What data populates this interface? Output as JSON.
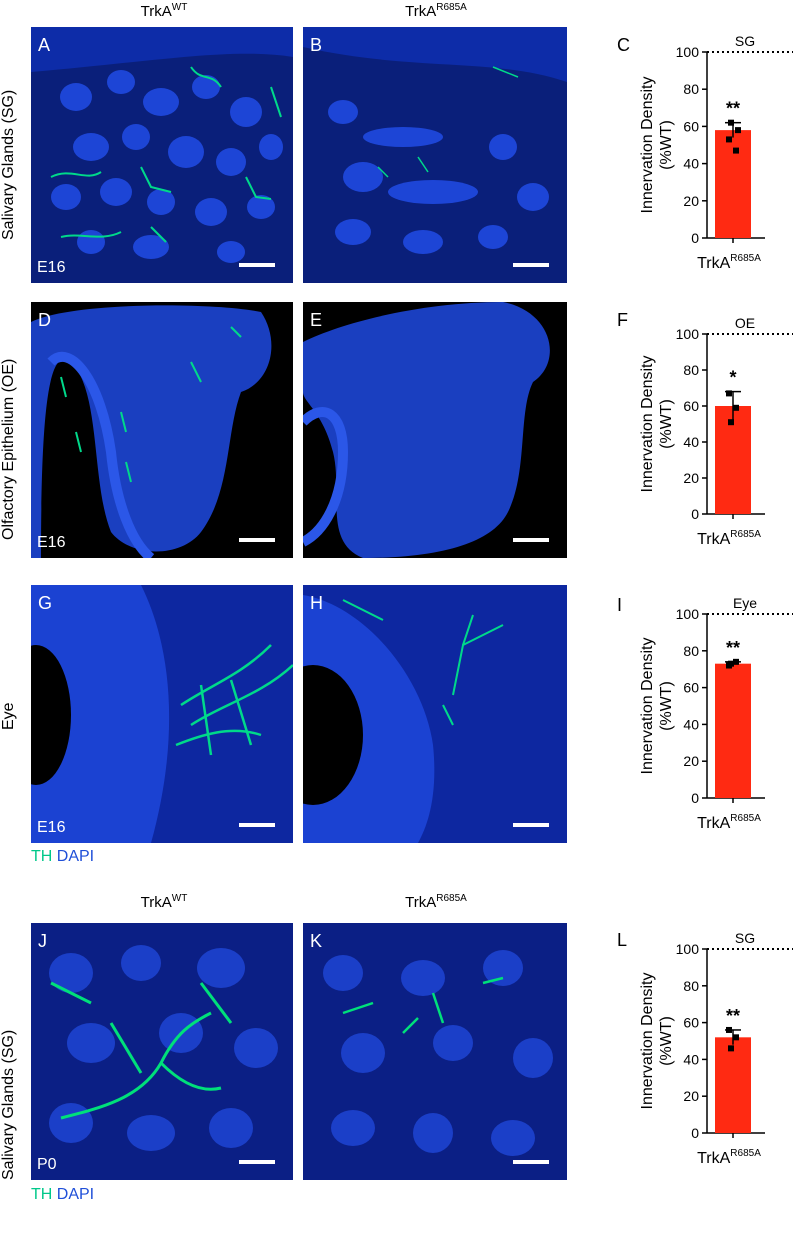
{
  "headers": [
    {
      "base": "TrkA",
      "sup": "WT"
    },
    {
      "base": "TrkA",
      "sup": "R685A"
    }
  ],
  "rows": [
    {
      "label": "Salivary Glands (SG)"
    },
    {
      "label": "Olfactory Epithelium (OE)"
    },
    {
      "label": "Eye"
    },
    {
      "label": "Salivary Glands (SG)"
    }
  ],
  "panels": {
    "A": {
      "letter": "A",
      "age": "E16"
    },
    "B": {
      "letter": "B"
    },
    "D": {
      "letter": "D",
      "age": "E16"
    },
    "E": {
      "letter": "E"
    },
    "G": {
      "letter": "G",
      "age": "E16"
    },
    "H": {
      "letter": "H"
    },
    "J": {
      "letter": "J",
      "age": "P0"
    },
    "K": {
      "letter": "K"
    }
  },
  "legend": {
    "th": "TH",
    "dapi": "DAPI"
  },
  "colors": {
    "th": "#00c88a",
    "dapi": "#1f4fd8",
    "bar": "#ff2a12"
  },
  "chart_data": [
    {
      "letter": "C",
      "type": "bar",
      "title": "SG",
      "ylabel": "Innervation Density (%WT)",
      "ylabel1": "Innervation Density",
      "ylabel2": "(%WT)",
      "category_base": "TrkA",
      "category_sup": "R685A",
      "value": 58,
      "sem": 4,
      "points": [
        53,
        47,
        62,
        58
      ],
      "significance": "**",
      "ylim": [
        0,
        100
      ],
      "yticks": [
        "0",
        "20",
        "40",
        "60",
        "80",
        "100"
      ],
      "reference_line": 100
    },
    {
      "letter": "F",
      "type": "bar",
      "title": "OE",
      "ylabel": "Innervation Density (%WT)",
      "ylabel1": "Innervation Density",
      "ylabel2": "(%WT)",
      "category_base": "TrkA",
      "category_sup": "R685A",
      "value": 60,
      "sem": 8,
      "points": [
        67,
        59,
        51
      ],
      "significance": "*",
      "ylim": [
        0,
        100
      ],
      "yticks": [
        "0",
        "20",
        "40",
        "60",
        "80",
        "100"
      ],
      "reference_line": 100
    },
    {
      "letter": "I",
      "type": "bar",
      "title": "Eye",
      "ylabel": "Innervation Density (%WT)",
      "ylabel1": "Innervation Density",
      "ylabel2": "(%WT)",
      "category_base": "TrkA",
      "category_sup": "R685A",
      "value": 73,
      "sem": 1,
      "points": [
        72,
        74,
        73
      ],
      "significance": "**",
      "ylim": [
        0,
        100
      ],
      "yticks": [
        "0",
        "20",
        "40",
        "60",
        "80",
        "100"
      ],
      "reference_line": 100
    },
    {
      "letter": "L",
      "type": "bar",
      "title": "SG",
      "ylabel": "Innervation Density (%WT)",
      "ylabel1": "Innervation Density",
      "ylabel2": "(%WT)",
      "category_base": "TrkA",
      "category_sup": "R685A",
      "value": 52,
      "sem": 4,
      "points": [
        56,
        52,
        46
      ],
      "significance": "**",
      "ylim": [
        0,
        100
      ],
      "yticks": [
        "0",
        "20",
        "40",
        "60",
        "80",
        "100"
      ],
      "reference_line": 100
    }
  ]
}
